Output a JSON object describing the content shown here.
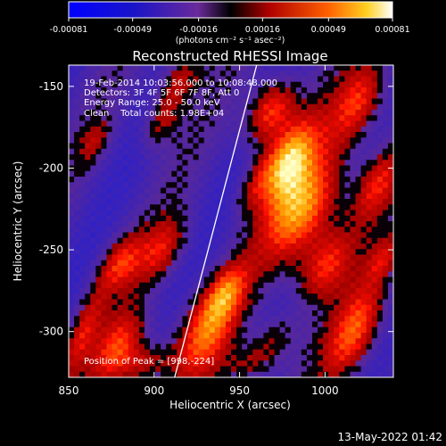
{
  "chart_data": {
    "type": "heatmap",
    "title": "Reconstructed RHESSI Image",
    "xlabel": "Heliocentric X (arcsec)",
    "ylabel": "Heliocentric Y (arcsec)",
    "xlim": [
      850,
      1040
    ],
    "ylim": [
      -328,
      -137
    ],
    "x_ticks": [
      "850",
      "900",
      "950",
      "1000"
    ],
    "x_tick_values": [
      850,
      900,
      950,
      1000
    ],
    "y_ticks": [
      "-150",
      "-200",
      "-250",
      "-300"
    ],
    "y_tick_values": [
      -150,
      -200,
      -250,
      -300
    ],
    "colorbar": {
      "ticks": [
        "-0.00081",
        "-0.00049",
        "-0.00016",
        "0.00016",
        "0.00049",
        "0.00081"
      ],
      "values": [
        -0.00081,
        -0.00049,
        -0.00016,
        0.00016,
        0.00049,
        0.00081
      ],
      "range": [
        -0.00081,
        0.00081
      ],
      "unit_label": "(photons cm⁻² s⁻¹ asec⁻²)"
    },
    "annotations": {
      "time_range": "19-Feb-2014 10:03:56.000 to 10:08:48.000",
      "detectors": "Detectors: 3F 4F 5F 6F 7F 8F, Att 0",
      "energy": "Energy Range: 25.0 - 50.0 keV",
      "method": "Clean    Total counts: 1.98E+04",
      "peak": "Position of Peak = [998,-224]"
    },
    "peak_position": [
      998,
      -224
    ],
    "limb_line": [
      [
        912,
        -328
      ],
      [
        960,
        -137
      ]
    ],
    "footer_date": "13-May-2022 01:42"
  },
  "colors": {
    "background": "#000000",
    "text": "#ffffff",
    "limb_line": "#ffffff"
  }
}
